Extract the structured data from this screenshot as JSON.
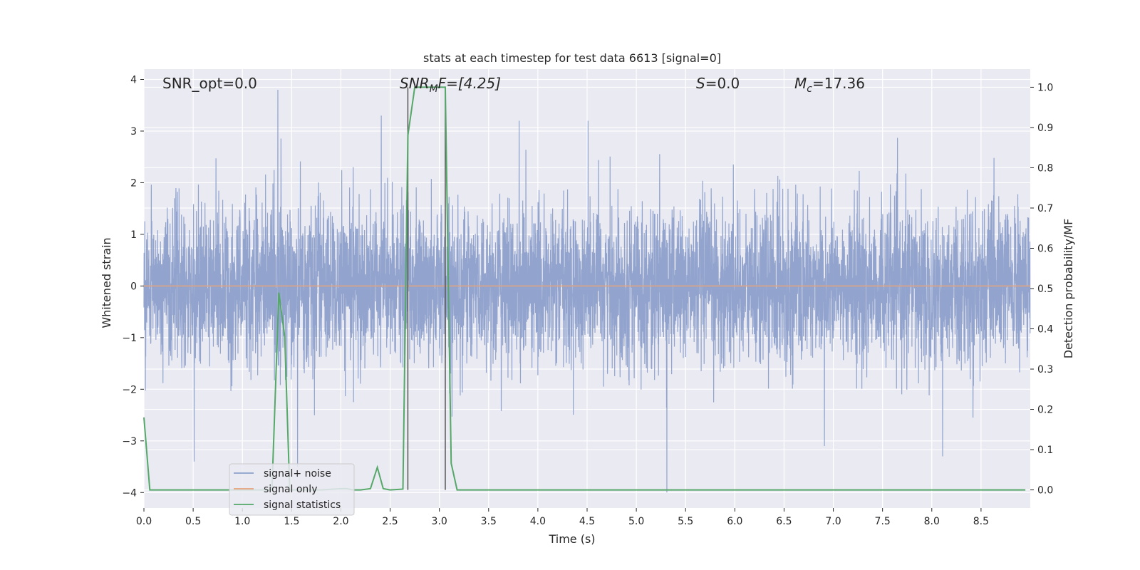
{
  "chart_data": {
    "type": "line",
    "title": "stats at each timestep for test data 6613 [signal=0]",
    "xlabel": "Time (s)",
    "ylabel": "Whitened strain",
    "ylabel_right": "Detection probability/MF",
    "xlim": [
      0.0,
      9.0
    ],
    "ylim": [
      -4.3,
      4.2
    ],
    "ylim_right": [
      -0.045,
      1.045
    ],
    "x_ticks": [
      0.0,
      0.5,
      1.0,
      1.5,
      2.0,
      2.5,
      3.0,
      3.5,
      4.0,
      4.5,
      5.0,
      5.5,
      6.0,
      6.5,
      7.0,
      7.5,
      8.0,
      8.5
    ],
    "x_tick_labels": [
      "0.0",
      "0.5",
      "1.0",
      "1.5",
      "2.0",
      "2.5",
      "3.0",
      "3.5",
      "4.0",
      "4.5",
      "5.0",
      "5.5",
      "6.0",
      "6.5",
      "7.0",
      "7.5",
      "8.0",
      "8.5"
    ],
    "y_ticks": [
      4,
      3,
      2,
      1,
      0,
      -1,
      -2,
      -3,
      -4
    ],
    "y_tick_labels": [
      "4",
      "3",
      "2",
      "1",
      "0",
      "−1",
      "−2",
      "−3",
      "−4"
    ],
    "y_right_ticks": [
      1.0,
      0.9,
      0.8,
      0.7,
      0.6,
      0.5,
      0.4,
      0.3,
      0.2,
      0.1,
      0.0
    ],
    "y_right_tick_labels": [
      "1.0",
      "0.9",
      "0.8",
      "0.7",
      "0.6",
      "0.5",
      "0.4",
      "0.3",
      "0.2",
      "0.1",
      "0.0"
    ],
    "grid": true,
    "legend_position": "lower-left",
    "annotations": {
      "snr_opt": "SNR_opt=0.0",
      "snr_mf": "SNR",
      "snr_mf_sub": "M",
      "snr_mf_rest": "F=[4.25]",
      "s_label": "S",
      "s_rest": "=0.0",
      "mc_label": "M",
      "mc_sub": "c",
      "mc_rest": "=17.36"
    },
    "vlines_x": [
      2.68,
      3.06
    ],
    "series": [
      {
        "name": "signal+ noise",
        "color": "#8da0cb",
        "kind": "noise",
        "sample_rate": 600,
        "std": 0.75,
        "peaks": [
          {
            "x": 1.36,
            "y": 3.8
          },
          {
            "x": 2.41,
            "y": 3.3
          },
          {
            "x": 3.81,
            "y": 3.2
          },
          {
            "x": 4.51,
            "y": 3.2
          },
          {
            "x": 5.31,
            "y": -4.0
          },
          {
            "x": 8.11,
            "y": -3.3
          },
          {
            "x": 1.56,
            "y": -3.5
          },
          {
            "x": 0.51,
            "y": -3.4
          },
          {
            "x": 6.91,
            "y": -3.1
          }
        ]
      },
      {
        "name": "signal only",
        "color": "#e5a27b",
        "values_x": [
          0.0,
          9.0
        ],
        "values_y": [
          0.0,
          0.0
        ]
      },
      {
        "name": "signal statistics",
        "color": "#55a868",
        "axis": "right",
        "x": [
          0.0,
          0.06,
          0.12,
          0.25,
          0.5,
          1.0,
          1.3,
          1.37,
          1.43,
          1.48,
          1.55,
          1.6,
          1.8,
          2.0,
          2.06,
          2.12,
          2.2,
          2.3,
          2.37,
          2.43,
          2.5,
          2.63,
          2.68,
          2.75,
          2.82,
          2.9,
          3.0,
          3.06,
          3.12,
          3.18,
          3.3,
          4.0,
          6.0,
          8.0,
          8.95
        ],
        "values": [
          0.18,
          0.0,
          0.0,
          0.0,
          0.0,
          0.0,
          0.0,
          0.49,
          0.38,
          0.0,
          0.0,
          0.0,
          0.0,
          0.003,
          0.003,
          0.0,
          0.0,
          0.003,
          0.056,
          0.003,
          0.0,
          0.002,
          0.88,
          1.0,
          1.0,
          1.0,
          1.0,
          1.0,
          0.066,
          0.0,
          0.0,
          0.0,
          0.0,
          0.0,
          0.0
        ]
      }
    ]
  }
}
